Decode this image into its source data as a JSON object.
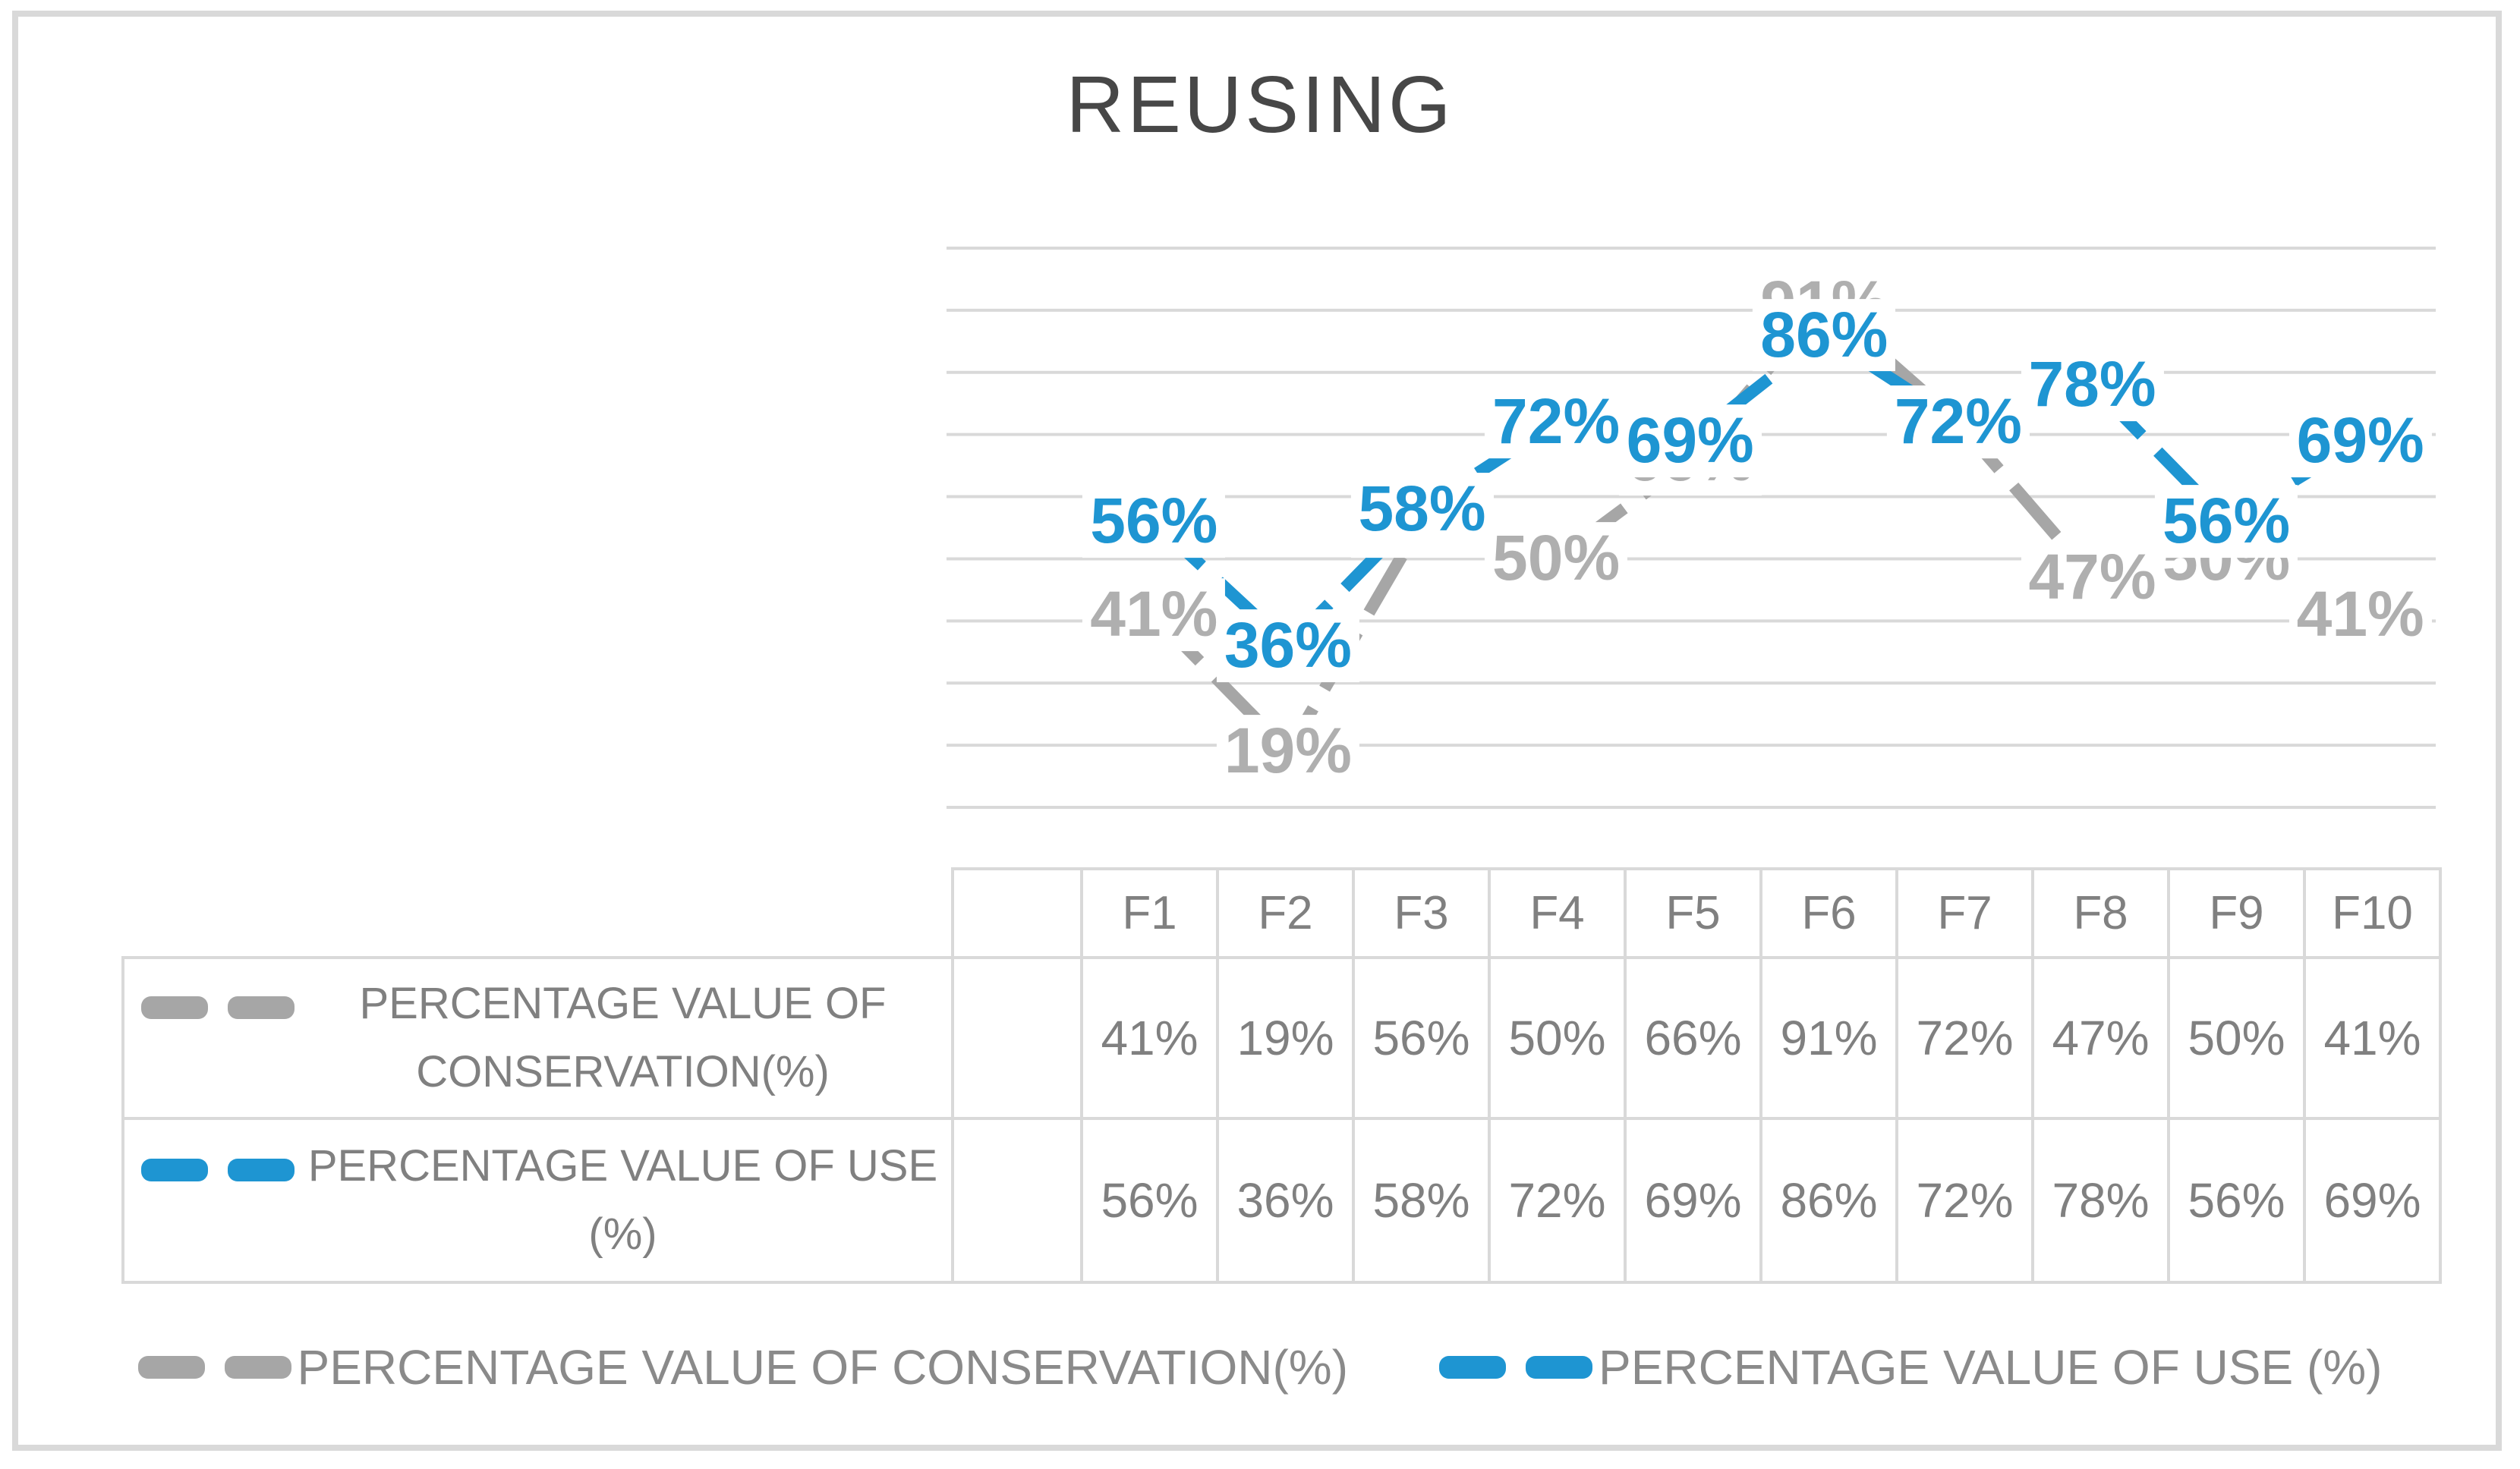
{
  "title": "REUSING",
  "chart_data": {
    "type": "line",
    "title": "REUSING",
    "categories": [
      "F1",
      "F2",
      "F3",
      "F4",
      "F5",
      "F6",
      "F7",
      "F8",
      "F9",
      "F10"
    ],
    "series": [
      {
        "key": "conservation",
        "name": "PERCENTAGE VALUE OF CONSERVATION(%)",
        "values": [
          41,
          19,
          56,
          50,
          66,
          91,
          72,
          47,
          50,
          41
        ],
        "line_color": "#A6A6A6",
        "label_color": "#AFAFAF",
        "line_style": "dashed"
      },
      {
        "key": "use",
        "name": "PERCENTAGE VALUE OF USE (%)",
        "values": [
          56,
          36,
          58,
          72,
          69,
          86,
          72,
          78,
          56,
          69
        ],
        "line_color": "#1E95D2",
        "label_color": "#1E95D2",
        "line_style": "dashed"
      }
    ],
    "ylim": [
      0,
      100
    ],
    "gridlines": {
      "values": [
        100,
        90,
        80,
        70,
        60,
        50,
        40,
        30,
        20,
        10
      ],
      "color": "#D9D9D9"
    },
    "data_labels": "percent values centered on points with white background",
    "x_axis_labels_shown": false,
    "y_axis_labels_shown": false,
    "legend_position": "bottom"
  },
  "table": {
    "corner_label": "",
    "spacer_label": "",
    "column_headers": [
      "F1",
      "F2",
      "F3",
      "F4",
      "F5",
      "F6",
      "F7",
      "F8",
      "F9",
      "F10"
    ],
    "rows": [
      {
        "label": "PERCENTAGE VALUE OF CONSERVATION(%)",
        "swatch_color": "#A6A6A6",
        "values": [
          "41%",
          "19%",
          "56%",
          "50%",
          "66%",
          "91%",
          "72%",
          "47%",
          "50%",
          "41%"
        ]
      },
      {
        "label": "PERCENTAGE VALUE OF USE (%)",
        "swatch_color": "#1E95D2",
        "values": [
          "56%",
          "36%",
          "58%",
          "72%",
          "69%",
          "86%",
          "72%",
          "78%",
          "56%",
          "69%"
        ]
      }
    ]
  },
  "legend": {
    "items": [
      {
        "label": "PERCENTAGE VALUE OF CONSERVATION(%)",
        "color": "#A6A6A6"
      },
      {
        "label": "PERCENTAGE VALUE OF USE (%)",
        "color": "#1E95D2"
      }
    ]
  },
  "colors": {
    "background": "#FFFFFF",
    "frame_border": "#D9D9D9",
    "grid": "#D9D9D9",
    "table_border": "#D9D9D9",
    "table_text": "#808080",
    "legend_text": "#8A8A8A",
    "title_text": "#474747",
    "series_gray": "#A6A6A6",
    "series_blue": "#1E95D2"
  }
}
